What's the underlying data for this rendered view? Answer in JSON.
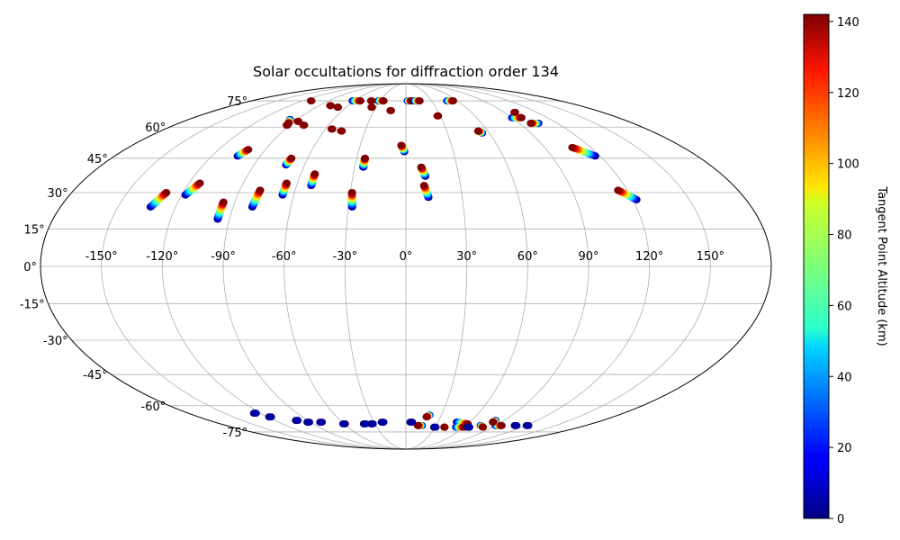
{
  "chart_data": {
    "type": "scatter",
    "projection": "mollweide",
    "title": "Solar occultations for diffraction order 134",
    "xlabel": "",
    "ylabel": "",
    "grid": true,
    "longitude_ticks": [
      "-150°",
      "-120°",
      "-90°",
      "-60°",
      "-30°",
      "0°",
      "30°",
      "60°",
      "90°",
      "120°",
      "150°"
    ],
    "longitude_tick_values": [
      -150,
      -120,
      -90,
      -60,
      -30,
      0,
      30,
      60,
      90,
      120,
      150
    ],
    "latitude_ticks": [
      "75°",
      "60°",
      "45°",
      "30°",
      "15°",
      "0°",
      "-15°",
      "-30°",
      "-45°",
      "-60°",
      "-75°"
    ],
    "latitude_tick_values": [
      75,
      60,
      45,
      30,
      15,
      0,
      -15,
      -30,
      -45,
      -60,
      -75
    ],
    "colorbar": {
      "label": "Tangent Point Altitude (km)",
      "min": 0,
      "max": 142,
      "tick_values": [
        0,
        20,
        40,
        60,
        80,
        100,
        120,
        140
      ],
      "tick_labels": [
        "0",
        "20",
        "40",
        "60",
        "80",
        "100",
        "120",
        "140"
      ],
      "colormap": "jet"
    },
    "occultation_tracks": [
      {
        "lon_start": -133,
        "lat_start": 24,
        "lon_end": -129,
        "lat_end": 30
      },
      {
        "lon_start": -118,
        "lat_start": 29,
        "lon_end": -114,
        "lat_end": 34
      },
      {
        "lon_start": -96,
        "lat_start": 19,
        "lon_end": -96,
        "lat_end": 26
      },
      {
        "lon_start": -104,
        "lat_start": 46,
        "lon_end": -101,
        "lat_end": 49
      },
      {
        "lon_start": -80,
        "lat_start": 24,
        "lon_end": -79,
        "lat_end": 31
      },
      {
        "lon_start": -66,
        "lat_start": 29,
        "lon_end": -66,
        "lat_end": 34
      },
      {
        "lon_start": -71,
        "lat_start": 42,
        "lon_end": -70,
        "lat_end": 45
      },
      {
        "lon_start": -52,
        "lat_start": 33,
        "lon_end": -52,
        "lat_end": 38
      },
      {
        "lon_start": -28,
        "lat_start": 24,
        "lon_end": -29,
        "lat_end": 30
      },
      {
        "lon_start": -25,
        "lat_start": 41,
        "lon_end": -25,
        "lat_end": 45
      },
      {
        "lon_start": -1,
        "lat_start": 48,
        "lon_end": -3,
        "lat_end": 51
      },
      {
        "lon_start": 12,
        "lat_start": 28,
        "lon_end": 10,
        "lat_end": 33
      },
      {
        "lon_start": 11,
        "lat_start": 37,
        "lon_end": 9,
        "lat_end": 41
      },
      {
        "lon_start": 55,
        "lat_start": 57,
        "lon_end": 53,
        "lat_end": 58
      },
      {
        "lon_start": 117,
        "lat_start": 46,
        "lon_end": 108,
        "lat_end": 50
      },
      {
        "lon_start": 122,
        "lat_start": 27,
        "lon_end": 115,
        "lat_end": 31
      },
      {
        "lon_start": 2,
        "lat_start": 75,
        "lon_end": 6,
        "lat_end": 75
      },
      {
        "lon_start": 10,
        "lat_start": 75,
        "lon_end": 16,
        "lat_end": 75
      },
      {
        "lon_start": -32,
        "lat_start": 75,
        "lon_end": -26,
        "lat_end": 75
      },
      {
        "lon_start": -62,
        "lat_start": 75,
        "lon_end": -53,
        "lat_end": 75
      },
      {
        "lon_start": 48,
        "lat_start": 75,
        "lon_end": 55,
        "lat_end": 75
      },
      {
        "lon_start": 90,
        "lat_start": 65,
        "lon_end": 98,
        "lat_end": 65
      },
      {
        "lon_start": 105,
        "lat_start": 62,
        "lon_end": 99,
        "lat_end": 62
      },
      {
        "lon_start": -96,
        "lat_start": 64,
        "lon_end": -93,
        "lat_end": 62
      },
      {
        "lon_start": 48,
        "lat_start": -69,
        "lon_end": 60,
        "lat_end": -70
      },
      {
        "lon_start": 40,
        "lat_start": -72,
        "lon_end": 40,
        "lat_end": -72
      },
      {
        "lon_start": 52,
        "lat_start": -72,
        "lon_end": 60,
        "lat_end": -72
      },
      {
        "lon_start": 90,
        "lat_start": -71,
        "lon_end": 96,
        "lat_end": -71
      },
      {
        "lon_start": 20,
        "lat_start": -65,
        "lon_end": 18,
        "lat_end": -66
      },
      {
        "lon_start": 75,
        "lat_start": -71,
        "lon_end": 80,
        "lat_end": -72
      },
      {
        "lon_start": 82,
        "lat_start": -68,
        "lon_end": 82,
        "lat_end": -69
      },
      {
        "lon_start": 16,
        "lat_start": -71,
        "lon_end": 12,
        "lat_end": -71
      }
    ],
    "high_altitude_points": [
      {
        "lon": -47,
        "lat": 58
      },
      {
        "lon": -55,
        "lat": 59
      },
      {
        "lon": -79,
        "lat": 61
      },
      {
        "lon": -87,
        "lat": 63
      },
      {
        "lon": -92,
        "lat": 61
      },
      {
        "lon": -110,
        "lat": 75
      },
      {
        "lon": -34,
        "lat": 71
      },
      {
        "lon": -14,
        "lat": 69
      },
      {
        "lon": 28,
        "lat": 66
      },
      {
        "lon": 100,
        "lat": 68
      },
      {
        "lon": -68,
        "lat": 71
      },
      {
        "lon": -78,
        "lat": 72
      },
      {
        "lon": -40,
        "lat": 75
      }
    ],
    "low_altitude_points": [
      {
        "lon": -125,
        "lat": -64
      },
      {
        "lon": -118,
        "lat": -66
      },
      {
        "lon": -100,
        "lat": -68
      },
      {
        "lon": -92,
        "lat": -69
      },
      {
        "lon": -80,
        "lat": -69
      },
      {
        "lon": -40,
        "lat": -70
      },
      {
        "lon": -33,
        "lat": -70
      },
      {
        "lon": -22,
        "lat": -69
      },
      {
        "lon": 5,
        "lat": -69
      },
      {
        "lon": -60,
        "lat": -70
      },
      {
        "lon": 110,
        "lat": -71
      },
      {
        "lon": 122,
        "lat": -71
      },
      {
        "lon": 30,
        "lat": -72
      },
      {
        "lon": 65,
        "lat": -72
      }
    ]
  }
}
